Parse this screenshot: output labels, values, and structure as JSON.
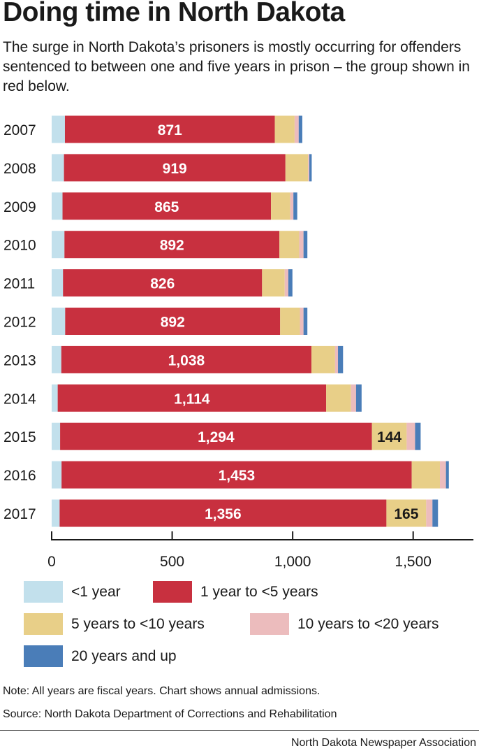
{
  "title": "Doing time in North Dakota",
  "subtitle": "The surge in North Dakota’s prisoners is mostly occurring for offenders sentenced to between one and five years in prison – the group shown in red below.",
  "note": "Note: All years are fiscal years. Chart shows annual admissions.",
  "source": "Source: North Dakota Department of Corrections and Rehabilitation",
  "credit": "North Dakota Newspaper Association",
  "legend": [
    {
      "label": "<1 year",
      "color": "#c2e0ec"
    },
    {
      "label": "1 year to <5 years",
      "color": "#c8303f"
    },
    {
      "label": "5 years to <10 years",
      "color": "#e8cf88"
    },
    {
      "label": "10 years to <20 years",
      "color": "#ecbcbd"
    },
    {
      "label": "20 years and up",
      "color": "#4a7db8"
    }
  ],
  "chart_data": {
    "type": "bar",
    "orientation": "horizontal",
    "stacked": true,
    "categories": [
      "2007",
      "2008",
      "2009",
      "2010",
      "2011",
      "2012",
      "2013",
      "2014",
      "2015",
      "2016",
      "2017"
    ],
    "series": [
      {
        "name": "<1 year",
        "color": "#c2e0ec",
        "values": [
          55,
          51,
          45,
          53,
          47,
          56,
          40,
          25,
          35,
          41,
          33
        ]
      },
      {
        "name": "1 year to <5 years",
        "color": "#c8303f",
        "values": [
          871,
          919,
          865,
          892,
          826,
          892,
          1038,
          1114,
          1294,
          1453,
          1356
        ]
      },
      {
        "name": "5 years to <10 years",
        "color": "#e8cf88",
        "values": [
          82,
          94,
          80,
          82,
          94,
          82,
          98,
          103,
          144,
          117,
          165
        ]
      },
      {
        "name": "10 years to <20 years",
        "color": "#ecbcbd",
        "values": [
          17,
          5,
          13,
          18,
          15,
          15,
          12,
          21,
          35,
          25,
          26
        ]
      },
      {
        "name": "20 years and up",
        "color": "#4a7db8",
        "values": [
          15,
          10,
          16,
          16,
          17,
          16,
          21,
          23,
          23,
          12,
          23
        ]
      }
    ],
    "data_labels": [
      {
        "category": "2007",
        "series": "1 year to <5 years",
        "text": "871"
      },
      {
        "category": "2008",
        "series": "1 year to <5 years",
        "text": "919"
      },
      {
        "category": "2009",
        "series": "1 year to <5 years",
        "text": "865"
      },
      {
        "category": "2010",
        "series": "1 year to <5 years",
        "text": "892"
      },
      {
        "category": "2011",
        "series": "1 year to <5 years",
        "text": "826"
      },
      {
        "category": "2012",
        "series": "1 year to <5 years",
        "text": "892"
      },
      {
        "category": "2013",
        "series": "1 year to <5 years",
        "text": "1,038"
      },
      {
        "category": "2014",
        "series": "1 year to <5 years",
        "text": "1,114"
      },
      {
        "category": "2015",
        "series": "1 year to <5 years",
        "text": "1,294"
      },
      {
        "category": "2015",
        "series": "5 years to <10 years",
        "text": "144"
      },
      {
        "category": "2016",
        "series": "1 year to <5 years",
        "text": "1,453"
      },
      {
        "category": "2017",
        "series": "1 year to <5 years",
        "text": "1,356"
      },
      {
        "category": "2017",
        "series": "5 years to <10 years",
        "text": "165"
      }
    ],
    "xlim": [
      0,
      1750
    ],
    "xticks": [
      0,
      500,
      1000,
      1500
    ],
    "xtick_labels": [
      "0",
      "500",
      "1,000",
      "1,500"
    ],
    "xlabel": "",
    "ylabel": "",
    "grid": false,
    "legend_position": "bottom"
  }
}
